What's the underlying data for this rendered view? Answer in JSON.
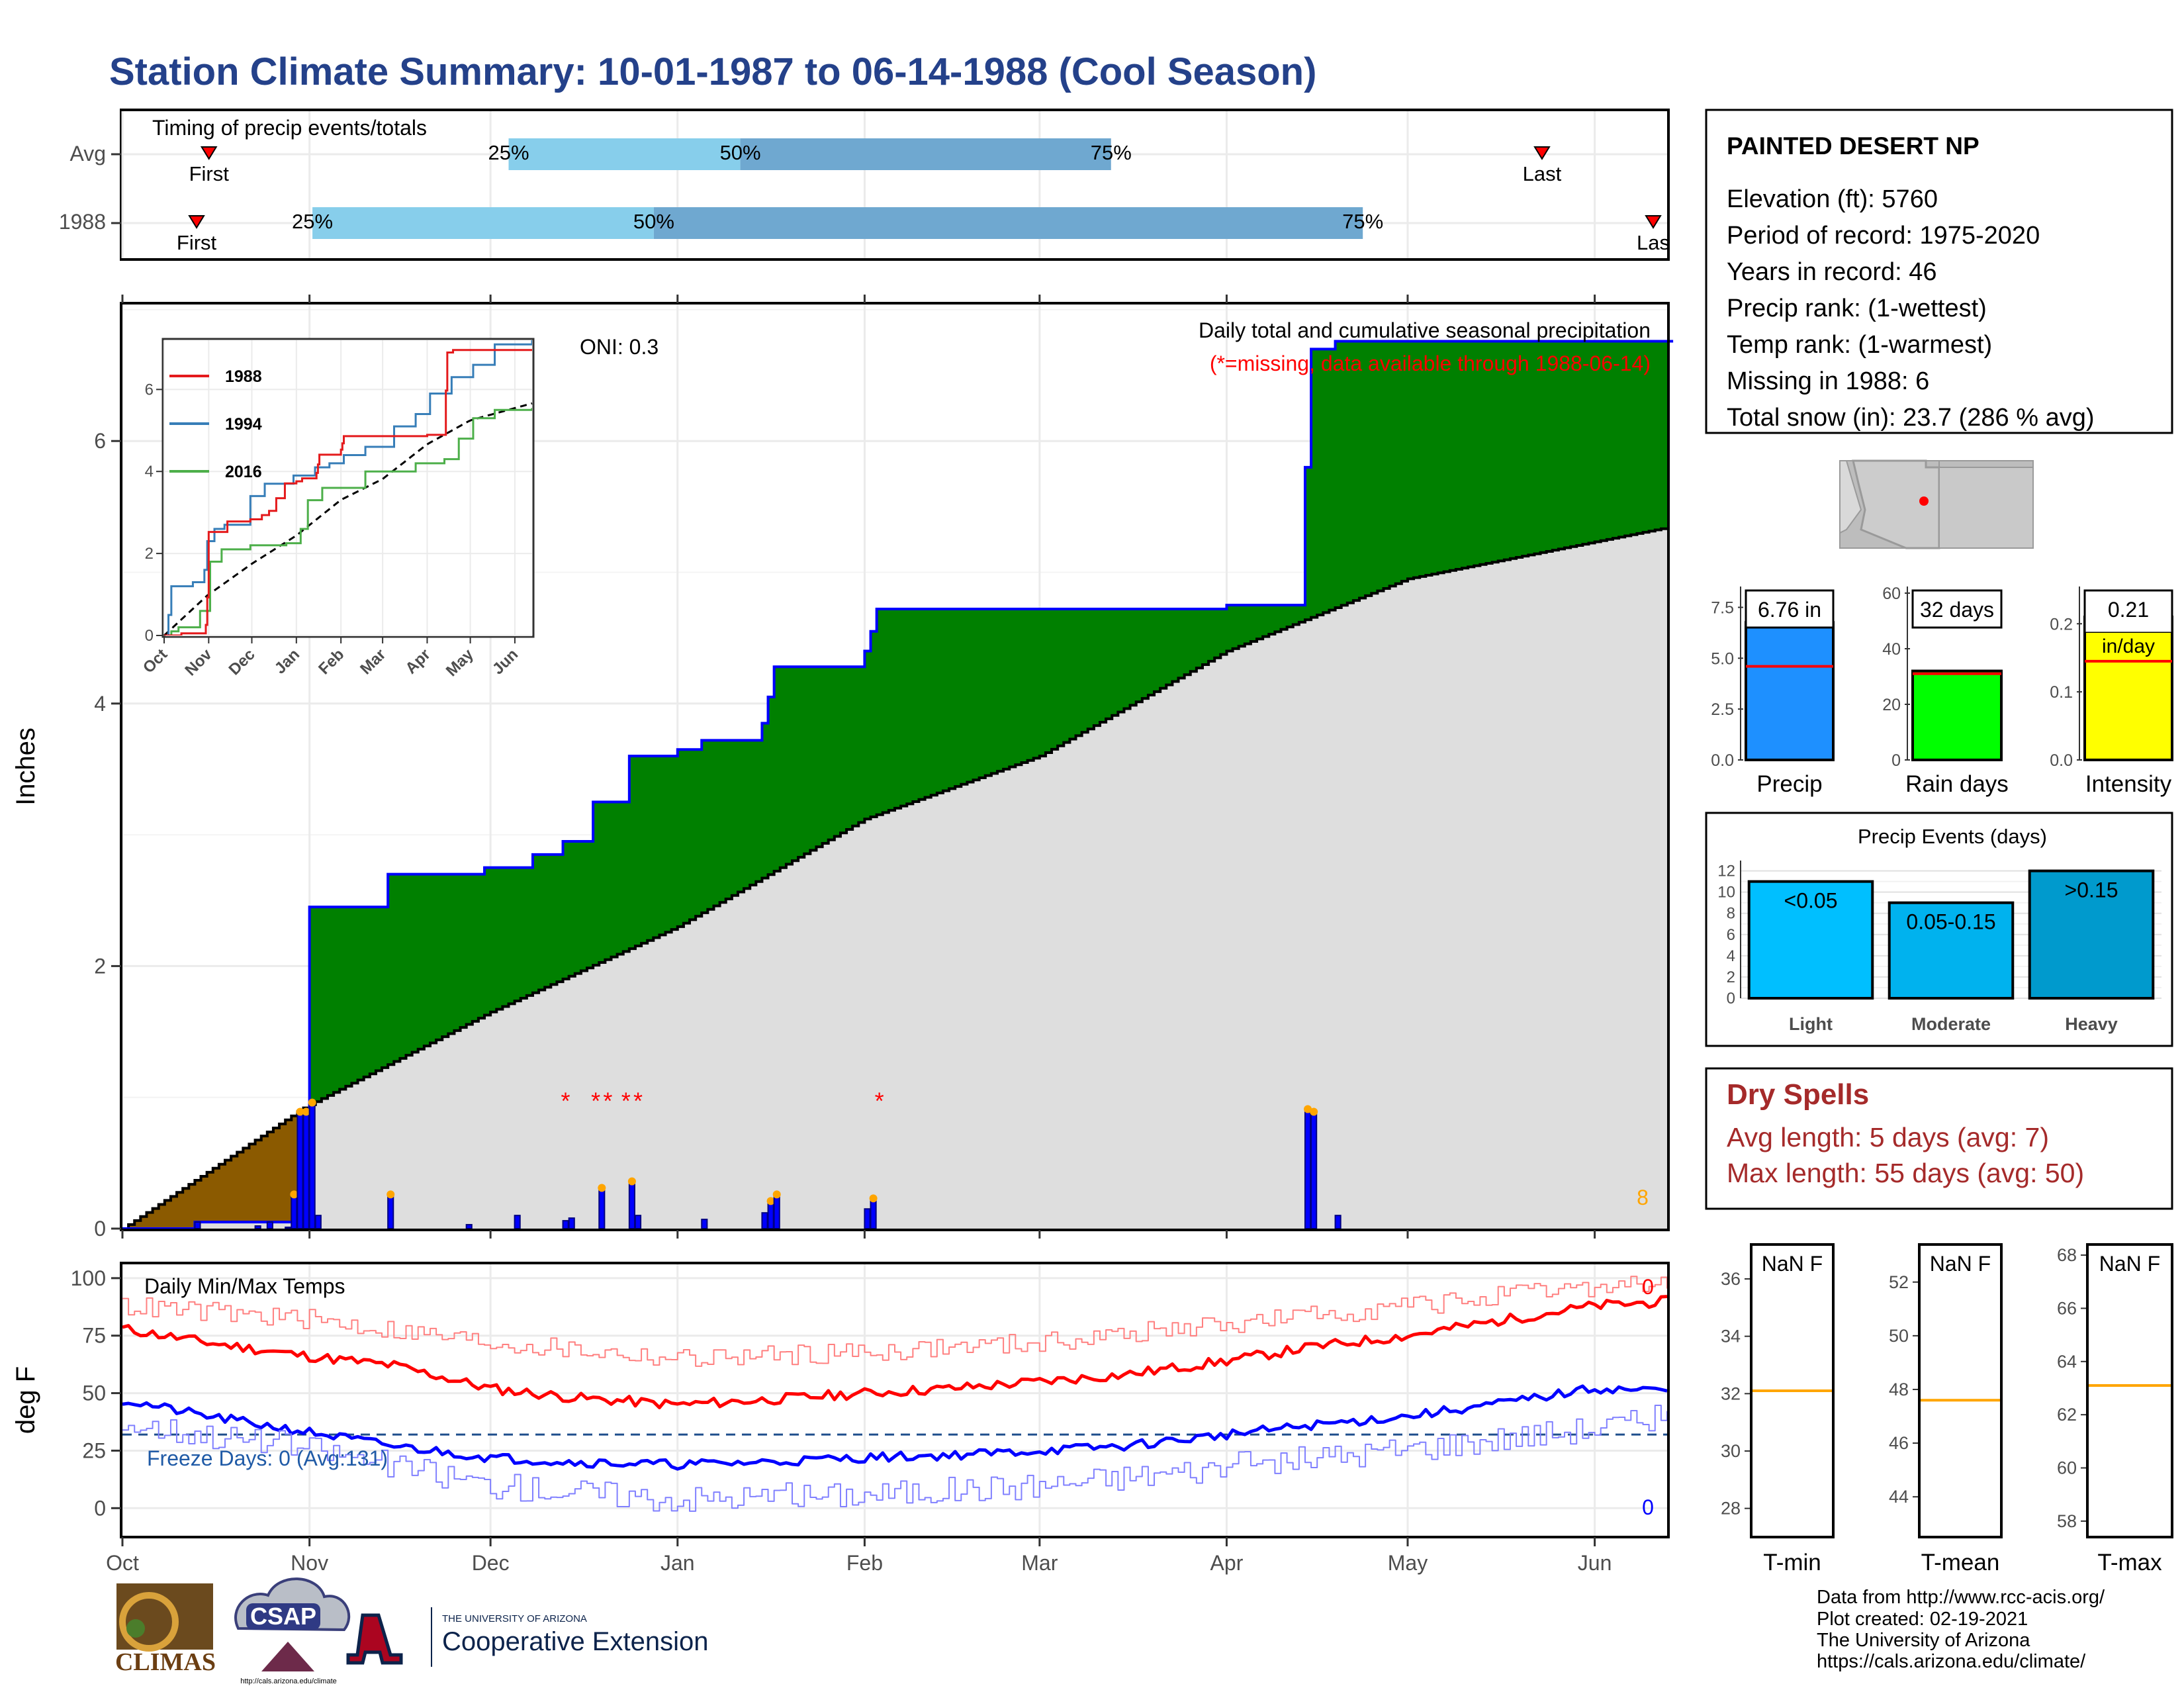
{
  "title": "Station Climate Summary: 10-01-1987 to 06-14-1988 (Cool Season)",
  "timing_panel": {
    "caption": "Timing of precip events/totals",
    "rows": [
      {
        "label": "Avg",
        "first_label": "First",
        "last_label": "Last",
        "first_frac": 0.056,
        "last_frac": 0.919,
        "p25": 0.25,
        "p50": 0.4,
        "p75": 0.64,
        "p25_label": "25%",
        "p50_label": "50%",
        "p75_label": "75%"
      },
      {
        "label": "1988",
        "first_label": "First",
        "last_label": "Las",
        "first_frac": 0.048,
        "last_frac": 0.991,
        "p25": 0.123,
        "p50": 0.344,
        "p75": 0.803,
        "p25_label": "25%",
        "p50_label": "50%",
        "p75_label": "75%"
      }
    ]
  },
  "station_box": {
    "name": "PAINTED DESERT NP",
    "lines": [
      "Elevation (ft): 5760",
      "Period of record: 1975-2020",
      "Years in record: 46",
      "Precip rank:  (1-wettest)",
      "Temp rank:  (1-warmest)",
      "Missing in 1988: 6",
      "Total snow (in): 23.7 (286 % avg)"
    ]
  },
  "main_panel": {
    "y_label": "Inches",
    "caption": "Daily total and cumulative seasonal precipitation",
    "missing_note": "(*=missing, data available through 1988-06-14)",
    "oni": "ONI: 0.3",
    "count_label": "8",
    "y_ticks": [
      "0",
      "2",
      "4",
      "6"
    ],
    "missing_mark": "*"
  },
  "months": [
    "Oct",
    "Nov",
    "Dec",
    "Jan",
    "Feb",
    "Mar",
    "Apr",
    "May",
    "Jun"
  ],
  "inset": {
    "legend": [
      "1988",
      "1994",
      "2016"
    ],
    "y_ticks": [
      "0",
      "2",
      "4",
      "6"
    ],
    "x_ticks": [
      "Oct",
      "Nov",
      "Dec",
      "Jan",
      "Feb",
      "Mar",
      "Apr",
      "May",
      "Jun"
    ]
  },
  "summary_bars": [
    {
      "name": "Precip",
      "label": "6.76 in",
      "sub": "",
      "value": 6.76,
      "avg": 4.6,
      "ylim": [
        0,
        8.2
      ],
      "ticks": [
        "0.0",
        "2.5",
        "5.0",
        "7.5"
      ],
      "tick_vals": [
        0,
        2.5,
        5,
        7.5
      ],
      "color": "#1e90ff"
    },
    {
      "name": "Rain days",
      "label": "32 days",
      "sub": "",
      "value": 32,
      "avg": 31,
      "ylim": [
        0,
        60
      ],
      "ticks": [
        "0",
        "20",
        "40",
        "60"
      ],
      "tick_vals": [
        0,
        20,
        40,
        60
      ],
      "color": "#00ff00"
    },
    {
      "name": "Intensity",
      "label": "0.21",
      "sub": "in/day",
      "value": 0.21,
      "avg": 0.145,
      "ylim": [
        0,
        0.245
      ],
      "ticks": [
        "0.0",
        "0.1",
        "0.2"
      ],
      "tick_vals": [
        0,
        0.1,
        0.2
      ],
      "color": "#ffff00"
    }
  ],
  "events_panel": {
    "title": "Precip Events (days)",
    "y_ticks": [
      "0",
      "2",
      "4",
      "6",
      "8",
      "10",
      "12"
    ],
    "bars": [
      {
        "cat": "Light",
        "label": "<0.05",
        "value": 11,
        "color": "#00bfff"
      },
      {
        "cat": "Moderate",
        "label": "0.05-0.15",
        "value": 9,
        "color": "#00b2ee"
      },
      {
        "cat": "Heavy",
        "label": ">0.15",
        "value": 12,
        "color": "#009acd"
      }
    ]
  },
  "dry_spells": {
    "title": "Dry Spells",
    "avg": "Avg length: 5 days (avg: 7)",
    "max": "Max length: 55 days (avg: 50)"
  },
  "temp_panel": {
    "caption": "Daily Min/Max Temps",
    "y_label": "deg F",
    "freeze": "Freeze Days: 0 (Avg:131)",
    "hot_count": "0",
    "cold_count": "0",
    "y_ticks": [
      "0",
      "25",
      "50",
      "75",
      "100"
    ]
  },
  "temp_boxes": [
    {
      "name": "T-min",
      "label": "NaN F",
      "ticks": [
        "28",
        "30",
        "32",
        "34",
        "36"
      ],
      "tick_vals": [
        28,
        30,
        32,
        34,
        36
      ],
      "ylim": [
        27,
        37.2
      ],
      "avg": 32.1
    },
    {
      "name": "T-mean",
      "label": "NaN F",
      "ticks": [
        "44",
        "46",
        "48",
        "50",
        "52"
      ],
      "tick_vals": [
        44,
        46,
        48,
        50,
        52
      ],
      "ylim": [
        42.5,
        53.4
      ],
      "avg": 47.6
    },
    {
      "name": "T-max",
      "label": "NaN F",
      "ticks": [
        "58",
        "60",
        "62",
        "64",
        "66",
        "68"
      ],
      "tick_vals": [
        58,
        60,
        62,
        64,
        66,
        68
      ],
      "ylim": [
        57.4,
        68.4
      ],
      "avg": 63.1
    }
  ],
  "credits": [
    "Data from http://www.rcc-acis.org/",
    "Plot created: 02-19-2021",
    "The University of Arizona",
    "https://cals.arizona.edu/climate/"
  ],
  "logos": {
    "climas": "CLIMAS",
    "csap": "CSAP",
    "csap_url": "http://cals.arizona.edu/climate",
    "ua_line1": "THE UNIVERSITY OF ARIZONA",
    "ua_line2": "Cooperative Extension"
  },
  "colors": {
    "title": "#24418a",
    "green": "#008000",
    "brown": "#8b5a00",
    "gray_fill": "#dedede",
    "blue": "#0000ff",
    "red": "#ff0000",
    "orange": "#ffa500",
    "dry": "#a52a2a",
    "q1": "#87ceeb",
    "q2": "#6fa8d0"
  },
  "chart_data": [
    {
      "type": "area",
      "title": "Daily total and cumulative seasonal precipitation",
      "ylabel": "Inches",
      "x_range": [
        "1987-10-01",
        "1988-06-14"
      ],
      "ylim": [
        0,
        7.05
      ],
      "cumulative_1988": [
        [
          "1987-10-01",
          0
        ],
        [
          "1987-10-13",
          0.05
        ],
        [
          "1987-10-30",
          0.25
        ],
        [
          "1987-10-31",
          0.9
        ],
        [
          "1987-11-01",
          2.45
        ],
        [
          "1987-11-14",
          2.7
        ],
        [
          "1987-11-30",
          2.75
        ],
        [
          "1987-12-08",
          2.85
        ],
        [
          "1987-12-13",
          2.95
        ],
        [
          "1987-12-18",
          3.25
        ],
        [
          "1987-12-24",
          3.6
        ],
        [
          "1988-01-01",
          3.65
        ],
        [
          "1988-01-05",
          3.72
        ],
        [
          "1988-01-15",
          3.85
        ],
        [
          "1988-01-16",
          4.05
        ],
        [
          "1988-01-17",
          4.28
        ],
        [
          "1988-02-01",
          4.4
        ],
        [
          "1988-02-02",
          4.55
        ],
        [
          "1988-02-03",
          4.72
        ],
        [
          "1988-04-01",
          4.75
        ],
        [
          "1988-04-14",
          4.85
        ],
        [
          "1988-04-14",
          5.8
        ],
        [
          "1988-04-15",
          6.7
        ],
        [
          "1988-04-19",
          6.76
        ],
        [
          "1988-06-14",
          6.76
        ]
      ],
      "average_cumulative": [
        [
          "1987-10-01",
          0
        ],
        [
          "1987-10-31",
          0.92
        ],
        [
          "1987-12-01",
          1.65
        ],
        [
          "1988-01-01",
          2.3
        ],
        [
          "1988-02-01",
          3.12
        ],
        [
          "1988-03-01",
          3.6
        ],
        [
          "1988-04-01",
          4.4
        ],
        [
          "1988-05-01",
          4.95
        ],
        [
          "1988-06-14",
          5.35
        ]
      ],
      "daily_precip": [
        [
          "1987-10-13",
          0.05
        ],
        [
          "1987-10-23",
          0.02
        ],
        [
          "1987-10-25",
          0.05
        ],
        [
          "1987-10-28",
          0.01
        ],
        [
          "1987-10-29",
          0.25
        ],
        [
          "1987-10-30",
          0.88
        ],
        [
          "1987-10-31",
          0.88
        ],
        [
          "1987-11-01",
          0.95
        ],
        [
          "1987-11-02",
          0.1
        ],
        [
          "1987-11-14",
          0.25
        ],
        [
          "1987-11-27",
          0.03
        ],
        [
          "1987-12-05",
          0.1
        ],
        [
          "1987-12-13",
          0.06
        ],
        [
          "1987-12-14",
          0.08
        ],
        [
          "1987-12-19",
          0.3
        ],
        [
          "1987-12-24",
          0.35
        ],
        [
          "1987-12-25",
          0.1
        ],
        [
          "1988-01-05",
          0.07
        ],
        [
          "1988-01-15",
          0.12
        ],
        [
          "1988-01-16",
          0.2
        ],
        [
          "1988-01-17",
          0.25
        ],
        [
          "1988-02-01",
          0.15
        ],
        [
          "1988-02-02",
          0.22
        ],
        [
          "1988-04-14",
          0.9
        ],
        [
          "1988-04-15",
          0.88
        ],
        [
          "1988-04-19",
          0.1
        ]
      ],
      "missing_dates": [
        "1987-12-13",
        "1987-12-18",
        "1987-12-20",
        "1987-12-23",
        "1987-12-25",
        "1988-02-03"
      ]
    },
    {
      "type": "line",
      "title": "Daily Min/Max Temps",
      "ylabel": "deg F",
      "ylim": [
        -10,
        105
      ],
      "series": [
        {
          "name": "avg max",
          "x": [
            "10-01",
            "10-15",
            "11-01",
            "11-15",
            "12-01",
            "12-15",
            "01-01",
            "01-15",
            "02-01",
            "02-15",
            "03-01",
            "03-15",
            "04-01",
            "04-15",
            "05-01",
            "05-15",
            "06-01",
            "06-14"
          ],
          "values": [
            78,
            72,
            66,
            62,
            52,
            48,
            45,
            47,
            50,
            52,
            55,
            58,
            64,
            70,
            75,
            81,
            88,
            90
          ]
        },
        {
          "name": "record max",
          "x": [
            "10-01",
            "11-01",
            "12-01",
            "01-01",
            "02-01",
            "03-01",
            "04-01",
            "05-01",
            "06-01",
            "06-14"
          ],
          "values": [
            88,
            82,
            72,
            65,
            68,
            72,
            80,
            88,
            96,
            98
          ]
        },
        {
          "name": "avg min",
          "x": [
            "10-01",
            "10-15",
            "11-01",
            "11-15",
            "12-01",
            "12-15",
            "01-01",
            "01-15",
            "02-01",
            "02-15",
            "03-01",
            "03-15",
            "04-01",
            "04-15",
            "05-01",
            "05-15",
            "06-01",
            "06-14"
          ],
          "values": [
            47,
            40,
            33,
            27,
            22,
            20,
            19,
            20,
            22,
            23,
            25,
            27,
            32,
            36,
            40,
            45,
            52,
            51
          ]
        },
        {
          "name": "record min",
          "x": [
            "10-01",
            "11-01",
            "12-01",
            "01-01",
            "02-01",
            "03-01",
            "04-01",
            "05-01",
            "06-01",
            "06-14"
          ],
          "values": [
            37,
            26,
            10,
            4,
            6,
            10,
            18,
            26,
            35,
            40
          ]
        }
      ],
      "freeze_line": 32
    },
    {
      "type": "bar",
      "categories": [
        "Precip",
        "Rain days",
        "Intensity"
      ],
      "values": [
        6.76,
        32,
        0.21
      ]
    },
    {
      "type": "bar",
      "title": "Precip Events (days)",
      "categories": [
        "Light",
        "Moderate",
        "Heavy"
      ],
      "values": [
        11,
        9,
        12
      ]
    }
  ]
}
